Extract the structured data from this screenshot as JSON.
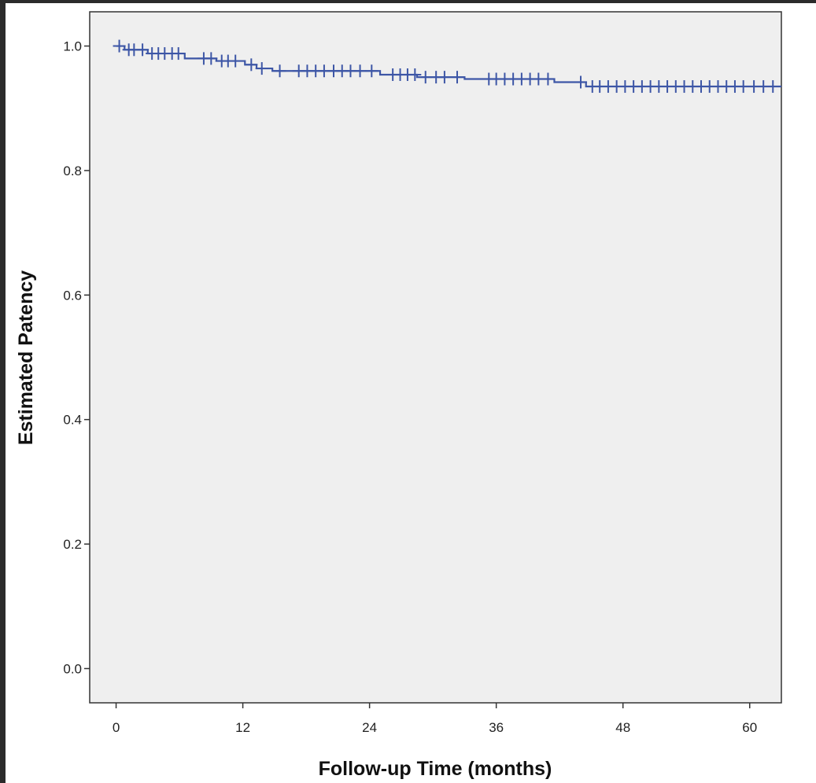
{
  "chart_data": {
    "type": "line",
    "subtype": "kaplan-meier-step",
    "title": "",
    "xlabel": "Follow-up Time (months)",
    "ylabel": "Estimated Patency",
    "xlim": [
      -2.5,
      63
    ],
    "ylim": [
      -0.055,
      1.055
    ],
    "x_ticks": [
      0,
      12,
      24,
      36,
      48,
      60
    ],
    "x_tick_labels": [
      "0",
      "12",
      "24",
      "36",
      "48",
      "60"
    ],
    "y_ticks": [
      0.0,
      0.2,
      0.4,
      0.6,
      0.8,
      1.0
    ],
    "y_tick_labels": [
      "0.0",
      "0.2",
      "0.4",
      "0.6",
      "0.8",
      "1.0"
    ],
    "grid": false,
    "legend": "none",
    "plot_background": "#efefef",
    "series": [
      {
        "color": "#3d56a6",
        "steps": [
          {
            "x": 0,
            "y": 1.0
          },
          {
            "x": 0.8,
            "y": 0.994
          },
          {
            "x": 3.0,
            "y": 0.988
          },
          {
            "x": 6.5,
            "y": 0.98
          },
          {
            "x": 9.5,
            "y": 0.976
          },
          {
            "x": 12.2,
            "y": 0.97
          },
          {
            "x": 13.3,
            "y": 0.964
          },
          {
            "x": 14.8,
            "y": 0.96
          },
          {
            "x": 25.0,
            "y": 0.954
          },
          {
            "x": 28.5,
            "y": 0.95
          },
          {
            "x": 33.0,
            "y": 0.947
          },
          {
            "x": 41.5,
            "y": 0.942
          },
          {
            "x": 44.5,
            "y": 0.935
          }
        ],
        "x_end": 63,
        "censored": [
          0.3,
          1.2,
          1.7,
          2.5,
          3.4,
          4.0,
          4.6,
          5.3,
          5.9,
          8.3,
          9.0,
          10.0,
          10.6,
          11.3,
          12.8,
          13.8,
          15.5,
          17.3,
          18.1,
          18.9,
          19.7,
          20.6,
          21.4,
          22.2,
          23.1,
          24.2,
          26.2,
          26.9,
          27.6,
          28.3,
          29.3,
          30.3,
          31.1,
          32.3,
          35.3,
          36.0,
          36.8,
          37.6,
          38.4,
          39.2,
          40.0,
          40.9,
          44.0,
          45.1,
          45.8,
          46.6,
          47.4,
          48.2,
          49.0,
          49.8,
          50.6,
          51.4,
          52.2,
          53.0,
          53.8,
          54.6,
          55.4,
          56.2,
          57.0,
          57.8,
          58.6,
          59.4,
          60.4,
          61.3,
          62.2
        ]
      }
    ]
  }
}
